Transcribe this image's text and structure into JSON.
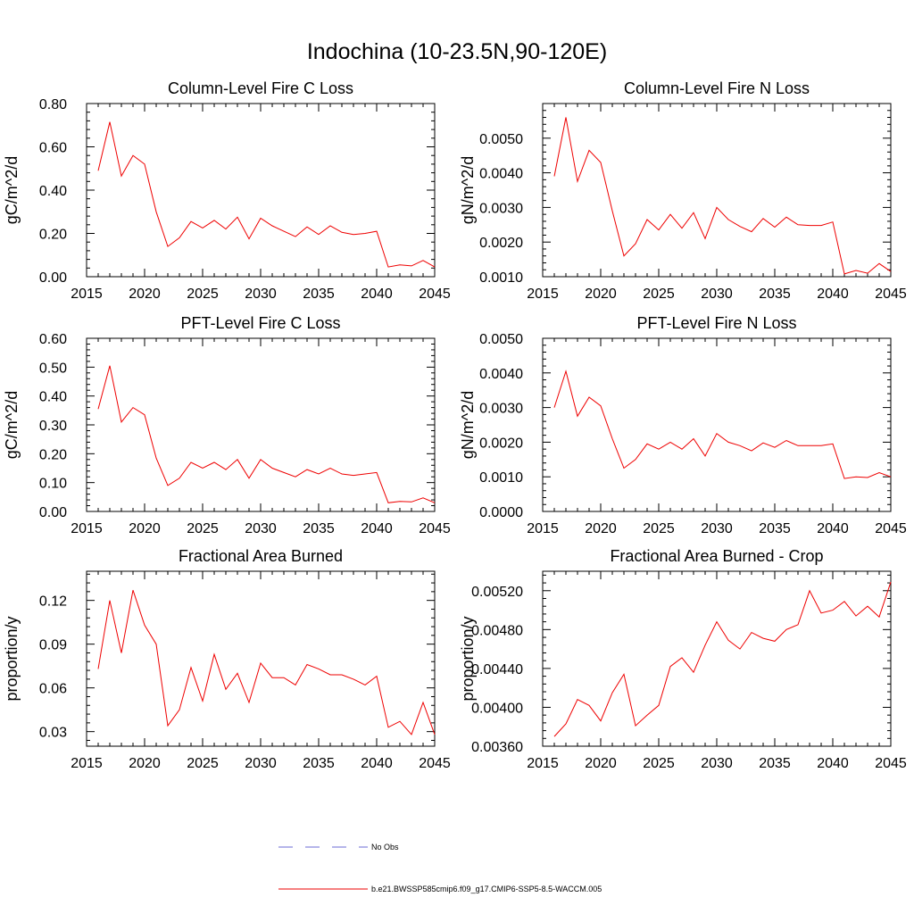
{
  "figure": {
    "title": "Indochina (10-23.5N,90-120E)",
    "legend": [
      {
        "label": "No Obs",
        "color": "#6b6bd6",
        "style": "dashed"
      },
      {
        "label": "b.e21.BWSSP585cmip6.f09_g17.CMIP6-SSP5-8.5-WACCM.005",
        "color": "#ee0000",
        "style": "solid"
      }
    ]
  },
  "chart_data": [
    {
      "type": "line",
      "title": "Column-Level Fire C Loss",
      "ylabel": "gC/m^2/d",
      "xlabel": "",
      "xlim": [
        2015,
        2045
      ],
      "ylim": [
        0,
        0.8
      ],
      "xticks": [
        2015,
        2020,
        2025,
        2030,
        2035,
        2040,
        2045
      ],
      "yticks": [
        0,
        0.2,
        0.4,
        0.6,
        0.8
      ],
      "ytick_labels": [
        "0.00",
        "0.20",
        "0.40",
        "0.60",
        "0.80"
      ],
      "x": [
        2016,
        2017,
        2018,
        2019,
        2020,
        2021,
        2022,
        2023,
        2024,
        2025,
        2026,
        2027,
        2028,
        2029,
        2030,
        2031,
        2032,
        2033,
        2034,
        2035,
        2036,
        2037,
        2038,
        2039,
        2040,
        2041,
        2042,
        2043,
        2044,
        2045
      ],
      "series": [
        {
          "name": "b.e21.BWSSP585cmip6.f09_g17.CMIP6-SSP5-8.5-WACCM.005",
          "color": "#ee0000",
          "values": [
            0.49,
            0.715,
            0.465,
            0.56,
            0.52,
            0.3,
            0.14,
            0.18,
            0.255,
            0.225,
            0.26,
            0.22,
            0.275,
            0.175,
            0.27,
            0.235,
            0.21,
            0.185,
            0.23,
            0.195,
            0.235,
            0.205,
            0.195,
            0.2,
            0.21,
            0.045,
            0.055,
            0.05,
            0.075,
            0.045
          ]
        }
      ]
    },
    {
      "type": "line",
      "title": "Column-Level Fire N Loss",
      "ylabel": "gN/m^2/d",
      "xlabel": "",
      "xlim": [
        2015,
        2045
      ],
      "ylim": [
        0.001,
        0.006
      ],
      "xticks": [
        2015,
        2020,
        2025,
        2030,
        2035,
        2040,
        2045
      ],
      "yticks": [
        0.001,
        0.002,
        0.003,
        0.004,
        0.005
      ],
      "ytick_labels": [
        "0.0010",
        "0.0020",
        "0.0030",
        "0.0040",
        "0.0050"
      ],
      "x": [
        2016,
        2017,
        2018,
        2019,
        2020,
        2021,
        2022,
        2023,
        2024,
        2025,
        2026,
        2027,
        2028,
        2029,
        2030,
        2031,
        2032,
        2033,
        2034,
        2035,
        2036,
        2037,
        2038,
        2039,
        2040,
        2041,
        2042,
        2043,
        2044,
        2045
      ],
      "series": [
        {
          "name": "b.e21.BWSSP585cmip6.f09_g17.CMIP6-SSP5-8.5-WACCM.005",
          "color": "#ee0000",
          "values": [
            0.0039,
            0.0056,
            0.00375,
            0.00465,
            0.0043,
            0.0029,
            0.0016,
            0.00195,
            0.00265,
            0.00235,
            0.0028,
            0.0024,
            0.00285,
            0.0021,
            0.003,
            0.00265,
            0.00245,
            0.0023,
            0.00268,
            0.00243,
            0.00272,
            0.0025,
            0.00248,
            0.00248,
            0.00258,
            0.00108,
            0.00118,
            0.0011,
            0.00138,
            0.00115
          ]
        }
      ]
    },
    {
      "type": "line",
      "title": "PFT-Level Fire C Loss",
      "ylabel": "gC/m^2/d",
      "xlabel": "",
      "xlim": [
        2015,
        2045
      ],
      "ylim": [
        0,
        0.6
      ],
      "xticks": [
        2015,
        2020,
        2025,
        2030,
        2035,
        2040,
        2045
      ],
      "yticks": [
        0,
        0.1,
        0.2,
        0.3,
        0.4,
        0.5,
        0.6
      ],
      "ytick_labels": [
        "0.00",
        "0.10",
        "0.20",
        "0.30",
        "0.40",
        "0.50",
        "0.60"
      ],
      "x": [
        2016,
        2017,
        2018,
        2019,
        2020,
        2021,
        2022,
        2023,
        2024,
        2025,
        2026,
        2027,
        2028,
        2029,
        2030,
        2031,
        2032,
        2033,
        2034,
        2035,
        2036,
        2037,
        2038,
        2039,
        2040,
        2041,
        2042,
        2043,
        2044,
        2045
      ],
      "series": [
        {
          "name": "b.e21.BWSSP585cmip6.f09_g17.CMIP6-SSP5-8.5-WACCM.005",
          "color": "#ee0000",
          "values": [
            0.355,
            0.505,
            0.31,
            0.36,
            0.335,
            0.185,
            0.09,
            0.115,
            0.17,
            0.15,
            0.17,
            0.145,
            0.18,
            0.115,
            0.18,
            0.15,
            0.135,
            0.12,
            0.145,
            0.13,
            0.15,
            0.13,
            0.125,
            0.13,
            0.135,
            0.03,
            0.035,
            0.033,
            0.047,
            0.03
          ]
        }
      ]
    },
    {
      "type": "line",
      "title": "PFT-Level Fire N Loss",
      "ylabel": "gN/m^2/d",
      "xlabel": "",
      "xlim": [
        2015,
        2045
      ],
      "ylim": [
        0,
        0.005
      ],
      "xticks": [
        2015,
        2020,
        2025,
        2030,
        2035,
        2040,
        2045
      ],
      "yticks": [
        0,
        0.001,
        0.002,
        0.003,
        0.004,
        0.005
      ],
      "ytick_labels": [
        "0.0000",
        "0.0010",
        "0.0020",
        "0.0030",
        "0.0040",
        "0.0050"
      ],
      "x": [
        2016,
        2017,
        2018,
        2019,
        2020,
        2021,
        2022,
        2023,
        2024,
        2025,
        2026,
        2027,
        2028,
        2029,
        2030,
        2031,
        2032,
        2033,
        2034,
        2035,
        2036,
        2037,
        2038,
        2039,
        2040,
        2041,
        2042,
        2043,
        2044,
        2045
      ],
      "series": [
        {
          "name": "b.e21.BWSSP585cmip6.f09_g17.CMIP6-SSP5-8.5-WACCM.005",
          "color": "#ee0000",
          "values": [
            0.003,
            0.00405,
            0.00275,
            0.0033,
            0.00305,
            0.0021,
            0.00125,
            0.0015,
            0.00195,
            0.0018,
            0.002,
            0.0018,
            0.0021,
            0.0016,
            0.00225,
            0.002,
            0.0019,
            0.00175,
            0.00198,
            0.00185,
            0.00205,
            0.0019,
            0.0019,
            0.0019,
            0.00195,
            0.00095,
            0.001,
            0.00098,
            0.00112,
            0.001
          ]
        }
      ]
    },
    {
      "type": "line",
      "title": "Fractional Area Burned",
      "ylabel": "proportion/y",
      "xlabel": "",
      "xlim": [
        2015,
        2045
      ],
      "ylim": [
        0.02,
        0.14
      ],
      "xticks": [
        2015,
        2020,
        2025,
        2030,
        2035,
        2040,
        2045
      ],
      "yticks": [
        0.03,
        0.06,
        0.09,
        0.12
      ],
      "ytick_labels": [
        "0.03",
        "0.06",
        "0.09",
        "0.12"
      ],
      "x": [
        2016,
        2017,
        2018,
        2019,
        2020,
        2021,
        2022,
        2023,
        2024,
        2025,
        2026,
        2027,
        2028,
        2029,
        2030,
        2031,
        2032,
        2033,
        2034,
        2035,
        2036,
        2037,
        2038,
        2039,
        2040,
        2041,
        2042,
        2043,
        2044,
        2045
      ],
      "series": [
        {
          "name": "b.e21.BWSSP585cmip6.f09_g17.CMIP6-SSP5-8.5-WACCM.005",
          "color": "#ee0000",
          "values": [
            0.073,
            0.12,
            0.084,
            0.127,
            0.103,
            0.09,
            0.034,
            0.045,
            0.074,
            0.051,
            0.083,
            0.059,
            0.07,
            0.05,
            0.077,
            0.067,
            0.067,
            0.062,
            0.076,
            0.073,
            0.069,
            0.069,
            0.066,
            0.062,
            0.068,
            0.033,
            0.037,
            0.028,
            0.05,
            0.028
          ]
        }
      ]
    },
    {
      "type": "line",
      "title": "Fractional Area Burned - Crop",
      "ylabel": "proportion/y",
      "xlabel": "",
      "xlim": [
        2015,
        2045
      ],
      "ylim": [
        0.0036,
        0.0054
      ],
      "xticks": [
        2015,
        2020,
        2025,
        2030,
        2035,
        2040,
        2045
      ],
      "yticks": [
        0.0036,
        0.004,
        0.0044,
        0.0048,
        0.0052
      ],
      "ytick_labels": [
        "0.00360",
        "0.00400",
        "0.00440",
        "0.00480",
        "0.00520"
      ],
      "x": [
        2016,
        2017,
        2018,
        2019,
        2020,
        2021,
        2022,
        2023,
        2024,
        2025,
        2026,
        2027,
        2028,
        2029,
        2030,
        2031,
        2032,
        2033,
        2034,
        2035,
        2036,
        2037,
        2038,
        2039,
        2040,
        2041,
        2042,
        2043,
        2044,
        2045
      ],
      "series": [
        {
          "name": "b.e21.BWSSP585cmip6.f09_g17.CMIP6-SSP5-8.5-WACCM.005",
          "color": "#ee0000",
          "values": [
            0.0037,
            0.00383,
            0.00408,
            0.00402,
            0.00386,
            0.00415,
            0.00434,
            0.00381,
            0.00392,
            0.00402,
            0.00442,
            0.00451,
            0.00436,
            0.00464,
            0.00488,
            0.00469,
            0.0046,
            0.00477,
            0.00471,
            0.00468,
            0.0048,
            0.00485,
            0.0052,
            0.00497,
            0.005,
            0.00509,
            0.00494,
            0.00504,
            0.00493,
            0.00529
          ]
        }
      ]
    }
  ]
}
